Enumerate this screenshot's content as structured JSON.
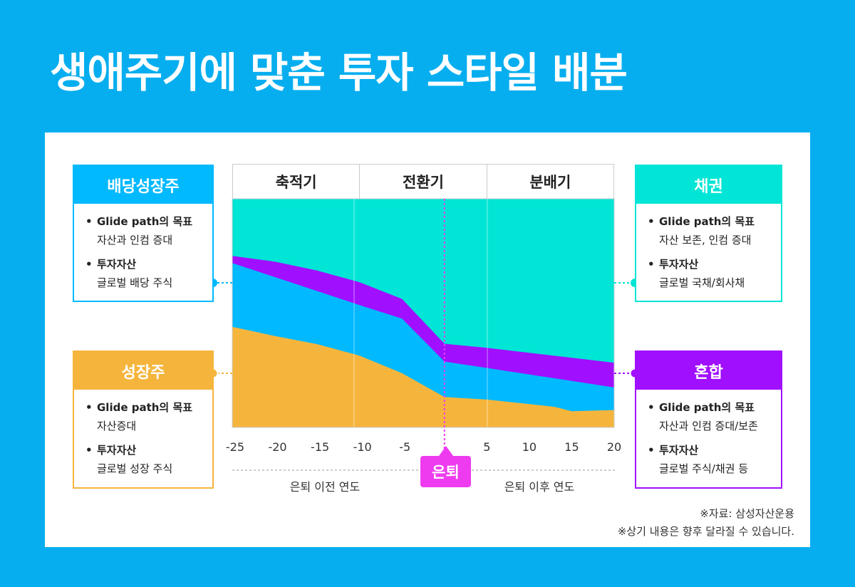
{
  "title": "생애주기에 맞춘 투자 스타일 배분",
  "phases": [
    "축적기",
    "전환기",
    "분배기"
  ],
  "boxes": {
    "dividend": {
      "title": "배당성장주",
      "goal_label": "Glide path의 목표",
      "goal": "자산과 인컴 증대",
      "asset_label": "투자자산",
      "asset": "글로벌 배당 주식",
      "color": "#00B9FF"
    },
    "growth": {
      "title": "성장주",
      "goal_label": "Glide path의 목표",
      "goal": "자산증대",
      "asset_label": "투자자산",
      "asset": "글로벌 성장 주식",
      "color": "#F5B53D"
    },
    "bond": {
      "title": "채권",
      "goal_label": "Glide path의 목표",
      "goal": "자산 보존, 인컴 증대",
      "asset_label": "투자자산",
      "asset": "글로벌 국채/회사채",
      "color": "#00E5D5"
    },
    "mixed": {
      "title": "혼합",
      "goal_label": "Glide path의 목표",
      "goal": "자산과 인컴 증대/보존",
      "asset_label": "투자자산",
      "asset": "글로벌 주식/채권 등",
      "color": "#A10FFF"
    }
  },
  "retirement_label": "은퇴",
  "before_label": "은퇴 이전 연도",
  "after_label": "은퇴 이후 연도",
  "notes": [
    "※자료: 삼성자산운용",
    "※상기 내용은 향후 달라질 수 있습니다."
  ],
  "chart_data": {
    "type": "area",
    "stacked": true,
    "xlim": [
      -25,
      20
    ],
    "ylim": [
      0,
      100
    ],
    "xticks": [
      -25,
      -20,
      -15,
      -10,
      -5,
      5,
      10,
      15,
      20
    ],
    "xtick_labels": [
      "-25",
      "-20",
      "-15",
      "-10",
      "-5",
      "5",
      "10",
      "15",
      "20"
    ],
    "retirement_x": 0,
    "phase_boundaries": [
      -10,
      5
    ],
    "series_cumulative_top": [
      {
        "name": "채권",
        "color": "#00E5D5",
        "x": [
          -25,
          20
        ],
        "y": [
          100,
          100
        ]
      },
      {
        "name": "혼합",
        "color": "#A10FFF",
        "x": [
          -25,
          -20,
          -15,
          -10,
          -5,
          0,
          5,
          20
        ],
        "y": [
          75,
          72.5,
          68.6,
          63.5,
          56.2,
          36.6,
          34.8,
          28.3
        ]
      },
      {
        "name": "배당성장주",
        "color": "#00B9FF",
        "x": [
          -25,
          -10,
          -5,
          0,
          5,
          20
        ],
        "y": [
          71.9,
          53.5,
          47.6,
          28.8,
          26,
          17.5
        ]
      },
      {
        "name": "성장주",
        "color": "#F5B53D",
        "x": [
          -25,
          -20,
          -15,
          -10,
          -5,
          0,
          5,
          13,
          15,
          20
        ],
        "y": [
          44,
          40,
          36.4,
          31.4,
          23.7,
          13.3,
          12.2,
          9,
          7.1,
          7.6
        ]
      }
    ]
  }
}
